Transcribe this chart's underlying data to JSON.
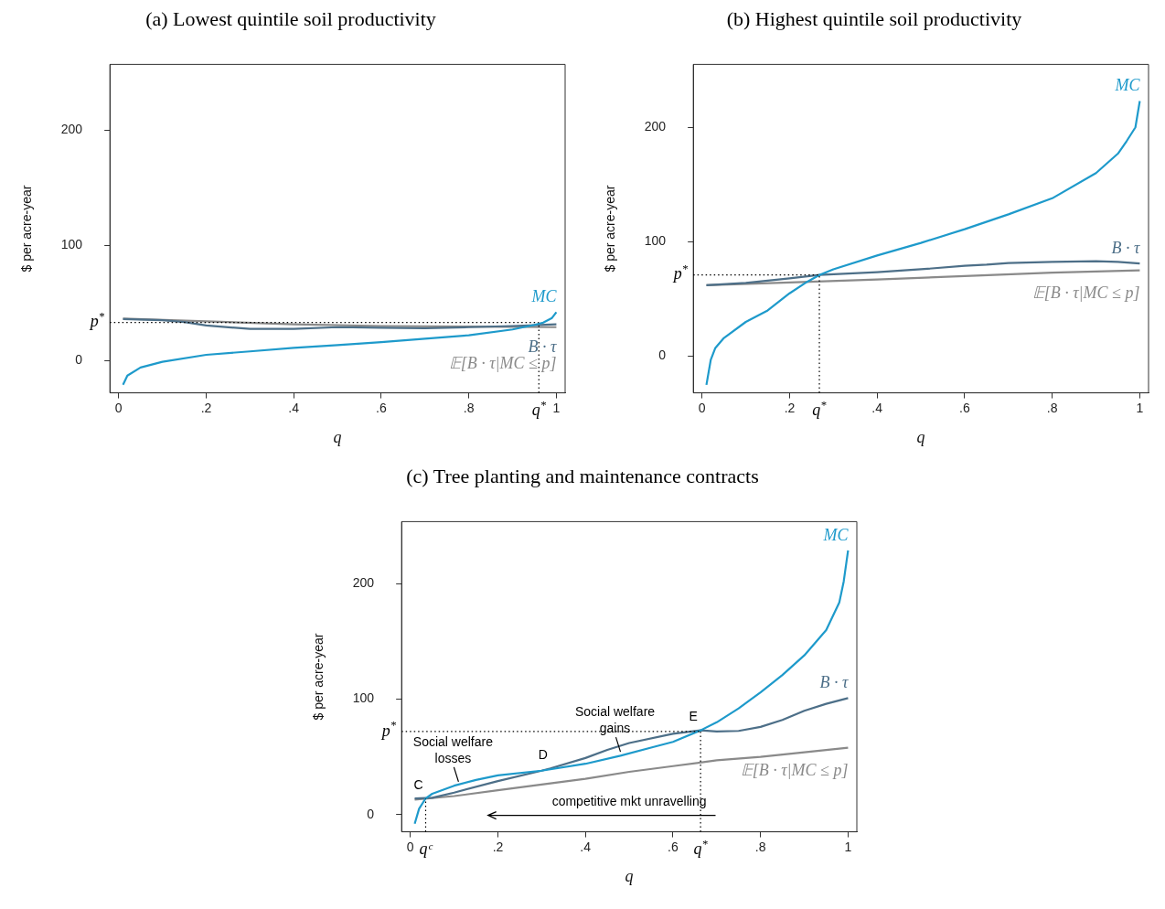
{
  "chart_data": [
    {
      "type": "line",
      "title": "(a) Lowest quintile soil productivity",
      "xlabel": "q",
      "ylabel": "$ per acre-year",
      "xlim": [
        -0.02,
        1.02
      ],
      "ylim": [
        -28,
        257
      ],
      "xticks": [
        {
          "value": 0,
          "label": "0"
        },
        {
          "value": 0.2,
          "label": ".2"
        },
        {
          "value": 0.4,
          "label": ".4"
        },
        {
          "value": 0.6,
          "label": ".6"
        },
        {
          "value": 0.8,
          "label": ".8"
        },
        {
          "value": 1,
          "label": "1"
        }
      ],
      "yticks": [
        0,
        100,
        200
      ],
      "grid": false,
      "legend": false,
      "marker": "none",
      "line_style": "solid",
      "series": [
        {
          "name": "MC",
          "color": "#1e9acb",
          "x": [
            0.01,
            0.02,
            0.05,
            0.1,
            0.2,
            0.3,
            0.4,
            0.5,
            0.6,
            0.7,
            0.8,
            0.9,
            0.95,
            0.97,
            0.99,
            1.0
          ],
          "values": [
            -21,
            -13,
            -6,
            -1,
            5,
            8,
            11,
            13.5,
            16,
            19,
            22,
            27,
            31,
            33,
            37,
            42
          ]
        },
        {
          "name": "B · τ",
          "color": "#4d6f88",
          "x": [
            0.01,
            0.1,
            0.15,
            0.2,
            0.3,
            0.4,
            0.5,
            0.6,
            0.7,
            0.8,
            0.9,
            1.0
          ],
          "values": [
            36,
            35,
            33.5,
            30.5,
            27.5,
            27.5,
            29,
            28.5,
            28,
            29,
            30,
            31.5
          ]
        },
        {
          "name": "𝔼[B · τ|MC ≤ p]",
          "color": "#8a8a8a",
          "x": [
            0.01,
            0.2,
            0.4,
            0.6,
            0.8,
            1.0
          ],
          "values": [
            36.5,
            34,
            31.5,
            30,
            29.5,
            29
          ]
        }
      ],
      "ref_lines": [
        {
          "axis": "y",
          "value": 33,
          "label": "p$^{*}$",
          "color": "#000000",
          "line_style": "dotted"
        },
        {
          "axis": "x",
          "value": 0.96,
          "label": "q$^{*}$",
          "color": "#000000",
          "line_style": "dotted"
        }
      ]
    },
    {
      "type": "line",
      "title": "(b) Highest quintile soil productivity",
      "xlabel": "q",
      "ylabel": "$ per acre-year",
      "xlim": [
        -0.02,
        1.02
      ],
      "ylim": [
        -32,
        255
      ],
      "xticks": [
        {
          "value": 0,
          "label": "0"
        },
        {
          "value": 0.2,
          "label": ".2"
        },
        {
          "value": 0.4,
          "label": ".4"
        },
        {
          "value": 0.6,
          "label": ".6"
        },
        {
          "value": 0.8,
          "label": ".8"
        },
        {
          "value": 1,
          "label": "1"
        }
      ],
      "yticks": [
        0,
        100,
        200
      ],
      "grid": false,
      "legend": false,
      "marker": "none",
      "line_style": "solid",
      "series": [
        {
          "name": "MC",
          "color": "#1e9acb",
          "x": [
            0.01,
            0.02,
            0.03,
            0.05,
            0.1,
            0.15,
            0.2,
            0.24,
            0.268,
            0.3,
            0.4,
            0.5,
            0.6,
            0.7,
            0.8,
            0.9,
            0.95,
            0.97,
            0.99,
            1.0
          ],
          "values": [
            -25,
            -3,
            7,
            16,
            30,
            40,
            55,
            65,
            71,
            76,
            88,
            99,
            111,
            124,
            138,
            160,
            177,
            188,
            200,
            223
          ]
        },
        {
          "name": "B · τ",
          "color": "#4d6f88",
          "x": [
            0.01,
            0.1,
            0.2,
            0.268,
            0.4,
            0.5,
            0.6,
            0.65,
            0.7,
            0.8,
            0.9,
            0.95,
            1.0
          ],
          "values": [
            62,
            64,
            68,
            71,
            73.5,
            76,
            79,
            80,
            81.5,
            82.5,
            83,
            82.5,
            81
          ]
        },
        {
          "name": "𝔼[B · τ|MC ≤ p]",
          "color": "#8a8a8a",
          "x": [
            0.01,
            0.2,
            0.4,
            0.6,
            0.8,
            1.0
          ],
          "values": [
            62,
            64.5,
            67,
            70,
            73,
            75
          ]
        }
      ],
      "ref_lines": [
        {
          "axis": "y",
          "value": 71,
          "label": "p$^{*}$",
          "color": "#000000",
          "line_style": "dotted"
        },
        {
          "axis": "x",
          "value": 0.268,
          "label": "q$^{*}$",
          "color": "#000000",
          "line_style": "dotted"
        }
      ]
    },
    {
      "type": "line",
      "title": "(c) Tree planting and maintenance contracts",
      "xlabel": "q",
      "ylabel": "$ per acre-year",
      "xlim": [
        -0.02,
        1.02
      ],
      "ylim": [
        -15,
        254
      ],
      "xticks": [
        {
          "value": 0,
          "label": "0"
        },
        {
          "value": 0.2,
          "label": ".2"
        },
        {
          "value": 0.4,
          "label": ".4"
        },
        {
          "value": 0.6,
          "label": ".6"
        },
        {
          "value": 0.8,
          "label": ".8"
        },
        {
          "value": 1,
          "label": "1"
        }
      ],
      "yticks": [
        0,
        100,
        200
      ],
      "grid": false,
      "legend": false,
      "marker": "none",
      "line_style": "solid",
      "series": [
        {
          "name": "MC",
          "color": "#1e9acb",
          "x": [
            0.01,
            0.02,
            0.035,
            0.05,
            0.1,
            0.15,
            0.2,
            0.3,
            0.4,
            0.48,
            0.55,
            0.6,
            0.663,
            0.7,
            0.75,
            0.8,
            0.85,
            0.9,
            0.95,
            0.98,
            0.99,
            1.0
          ],
          "values": [
            -8,
            5,
            14,
            18,
            25,
            30,
            34,
            38,
            44,
            51,
            58,
            63,
            73,
            80,
            92,
            106,
            121,
            138,
            160,
            184,
            202,
            229
          ]
        },
        {
          "name": "B · τ",
          "color": "#4d6f88",
          "x": [
            0.01,
            0.05,
            0.1,
            0.2,
            0.3,
            0.32,
            0.4,
            0.45,
            0.5,
            0.6,
            0.663,
            0.7,
            0.75,
            0.8,
            0.85,
            0.9,
            0.95,
            1.0
          ],
          "values": [
            14,
            14.5,
            19,
            29,
            38,
            40,
            49,
            56,
            62,
            70,
            73,
            72,
            72.5,
            76,
            82,
            90,
            96,
            101
          ]
        },
        {
          "name": "𝔼[B · τ|MC ≤ p]",
          "color": "#8a8a8a",
          "x": [
            0.01,
            0.1,
            0.2,
            0.3,
            0.4,
            0.5,
            0.6,
            0.7,
            0.8,
            0.9,
            1.0
          ],
          "values": [
            13,
            16,
            21,
            26,
            31,
            37,
            42,
            47,
            50,
            54,
            58
          ]
        }
      ],
      "ref_lines": [
        {
          "axis": "y",
          "value": 72,
          "label": "p$^{*}$",
          "color": "#000000",
          "line_style": "dotted"
        },
        {
          "axis": "x",
          "value": 0.663,
          "label": "q$^{*}$",
          "color": "#000000",
          "line_style": "dotted"
        },
        {
          "axis": "x",
          "value": 0.035,
          "label": "qᶜ",
          "color": "#000000",
          "line_style": "dotted"
        }
      ],
      "annotations": [
        {
          "text": "C",
          "x": 0.035,
          "y": 14
        },
        {
          "text": "D",
          "x": 0.32,
          "y": 40
        },
        {
          "text": "E",
          "x": 0.663,
          "y": 73
        },
        {
          "text": "Social welfare losses",
          "x": 0.11,
          "y": 26
        },
        {
          "text": "Social welfare gains",
          "x": 0.48,
          "y": 52
        },
        "competitive mkt unravelling"
      ]
    }
  ]
}
